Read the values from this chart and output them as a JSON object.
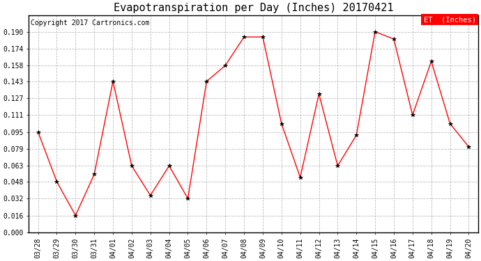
{
  "title": "Evapotranspiration per Day (Inches) 20170421",
  "copyright": "Copyright 2017 Cartronics.com",
  "legend_label": "ET  (Inches)",
  "x_labels": [
    "03/28",
    "03/29",
    "03/30",
    "03/31",
    "04/01",
    "04/02",
    "04/03",
    "04/04",
    "04/05",
    "04/06",
    "04/07",
    "04/08",
    "04/09",
    "04/10",
    "04/11",
    "04/12",
    "04/13",
    "04/14",
    "04/15",
    "04/16",
    "04/17",
    "04/18",
    "04/19",
    "04/20"
  ],
  "y_values": [
    0.095,
    0.048,
    0.016,
    0.055,
    0.143,
    0.063,
    0.035,
    0.063,
    0.032,
    0.143,
    0.158,
    0.185,
    0.185,
    0.103,
    0.052,
    0.131,
    0.063,
    0.092,
    0.19,
    0.183,
    0.111,
    0.162,
    0.103,
    0.081
  ],
  "line_color": "red",
  "marker_color": "black",
  "marker": "*",
  "ylim": [
    0.0,
    0.2057
  ],
  "y_ticks": [
    0.0,
    0.016,
    0.032,
    0.048,
    0.063,
    0.079,
    0.095,
    0.111,
    0.127,
    0.143,
    0.158,
    0.174,
    0.19
  ],
  "background_color": "#ffffff",
  "grid_color": "#bbbbbb",
  "legend_bg": "red",
  "legend_text_color": "white",
  "title_fontsize": 11,
  "copyright_fontsize": 7,
  "tick_fontsize": 7,
  "legend_fontsize": 7.5
}
